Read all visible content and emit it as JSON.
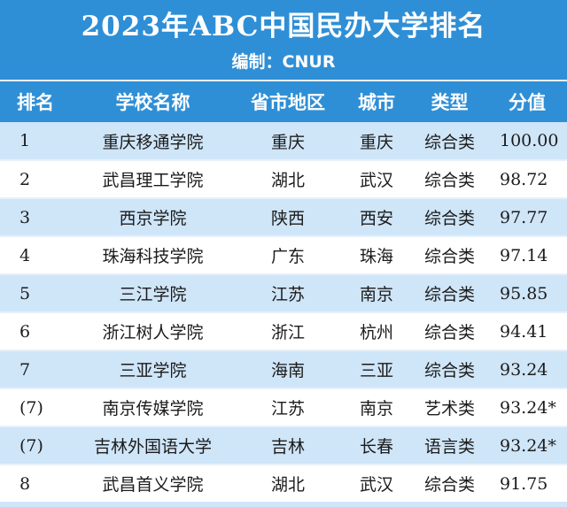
{
  "header": {
    "title": "2023年ABC中国民办大学排名",
    "editor": "编制：CNUR"
  },
  "columns": [
    "排名",
    "学校名称",
    "省市地区",
    "城市",
    "类型",
    "分值"
  ],
  "rows": [
    {
      "rank": "1",
      "name": "重庆移通学院",
      "province": "重庆",
      "city": "重庆",
      "type": "综合类",
      "score": "100.00"
    },
    {
      "rank": "2",
      "name": "武昌理工学院",
      "province": "湖北",
      "city": "武汉",
      "type": "综合类",
      "score": "98.72"
    },
    {
      "rank": "3",
      "name": "西京学院",
      "province": "陕西",
      "city": "西安",
      "type": "综合类",
      "score": "97.77"
    },
    {
      "rank": "4",
      "name": "珠海科技学院",
      "province": "广东",
      "city": "珠海",
      "type": "综合类",
      "score": "97.14"
    },
    {
      "rank": "5",
      "name": "三江学院",
      "province": "江苏",
      "city": "南京",
      "type": "综合类",
      "score": "95.85"
    },
    {
      "rank": "6",
      "name": "浙江树人学院",
      "province": "浙江",
      "city": "杭州",
      "type": "综合类",
      "score": "94.41"
    },
    {
      "rank": "7",
      "name": "三亚学院",
      "province": "海南",
      "city": "三亚",
      "type": "综合类",
      "score": "93.24"
    },
    {
      "rank": "(7)",
      "name": "南京传媒学院",
      "province": "江苏",
      "city": "南京",
      "type": "艺术类",
      "score": "93.24*"
    },
    {
      "rank": "(7)",
      "name": "吉林外国语大学",
      "province": "吉林",
      "city": "长春",
      "type": "语言类",
      "score": "93.24*"
    },
    {
      "rank": "8",
      "name": "武昌首义学院",
      "province": "湖北",
      "city": "武汉",
      "type": "综合类",
      "score": "91.75"
    }
  ],
  "colors": {
    "header_blue": "#2f8fd6",
    "stripe_blue": "#cfe5f8"
  }
}
